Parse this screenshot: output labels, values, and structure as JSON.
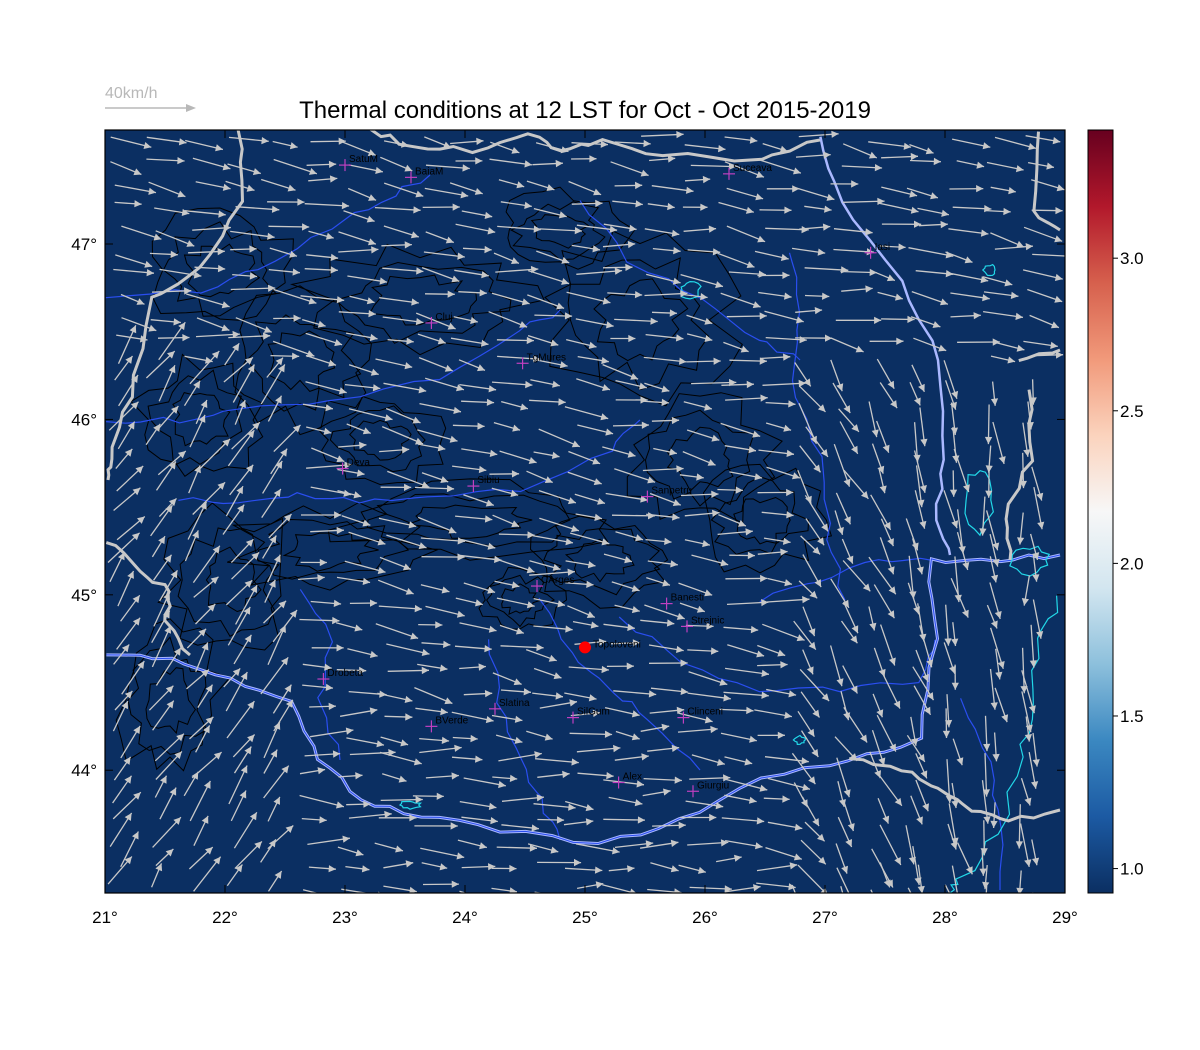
{
  "title": "Thermal conditions at 12 LST for Oct - Oct  2015-2019",
  "wind_legend": {
    "label": "40km/h",
    "color": "#b8b8b8"
  },
  "map": {
    "background_color": "#0b2f62",
    "lon_range": [
      21,
      29
    ],
    "lat_range": [
      43.3,
      47.65
    ],
    "x_ticks": [
      "21°",
      "22°",
      "23°",
      "24°",
      "25°",
      "26°",
      "27°",
      "28°",
      "29°"
    ],
    "y_ticks": [
      "44°",
      "45°",
      "46°",
      "47°"
    ],
    "colors": {
      "country_border": "#c8c8c8",
      "rivers": "#2a4ef0",
      "danube": "#aab8ff",
      "lakes": "#22d8e8",
      "contours": "#000000",
      "stations": "#c040c0",
      "highlight_station": "#ff0000"
    }
  },
  "stations": [
    {
      "name": "SatuM",
      "lon": 23.0,
      "lat": 47.45
    },
    {
      "name": "BaiaM",
      "lon": 23.55,
      "lat": 47.38
    },
    {
      "name": "Suceava",
      "lon": 26.2,
      "lat": 47.4
    },
    {
      "name": "Iasi",
      "lon": 27.38,
      "lat": 46.95
    },
    {
      "name": "Cluj",
      "lon": 23.72,
      "lat": 46.55
    },
    {
      "name": "TgMures",
      "lon": 24.48,
      "lat": 46.32
    },
    {
      "name": "Deva",
      "lon": 22.98,
      "lat": 45.72
    },
    {
      "name": "Sibiu",
      "lon": 24.07,
      "lat": 45.62
    },
    {
      "name": "Sanpetru",
      "lon": 25.52,
      "lat": 45.56
    },
    {
      "name": "CArges",
      "lon": 24.6,
      "lat": 45.05
    },
    {
      "name": "Banesti",
      "lon": 25.68,
      "lat": 44.95
    },
    {
      "name": "Strejnic",
      "lon": 25.85,
      "lat": 44.82
    },
    {
      "name": "Drobeta",
      "lon": 22.82,
      "lat": 44.52
    },
    {
      "name": "Slatina",
      "lon": 24.25,
      "lat": 44.35
    },
    {
      "name": "SilGum",
      "lon": 24.9,
      "lat": 44.3
    },
    {
      "name": "Clinceni",
      "lon": 25.82,
      "lat": 44.3
    },
    {
      "name": "BVerde",
      "lon": 23.72,
      "lat": 44.25
    },
    {
      "name": "Alex",
      "lon": 25.28,
      "lat": 43.93
    },
    {
      "name": "Giurgiu",
      "lon": 25.9,
      "lat": 43.88
    }
  ],
  "highlight_station": {
    "name": "Topoloveni",
    "lon": 25.0,
    "lat": 44.7
  },
  "colorbar": {
    "ticks": [
      "1.0",
      "1.5",
      "2.0",
      "2.5",
      "3.0"
    ],
    "tick_values": [
      1.0,
      1.5,
      2.0,
      2.5,
      3.0
    ],
    "range": [
      0.92,
      3.42
    ],
    "colormap": [
      "#0b2f62",
      "#1c5aa3",
      "#3b88c1",
      "#8dc0dc",
      "#d3e6f0",
      "#f7f7f7",
      "#fbd3bd",
      "#f1997a",
      "#d6604d",
      "#b2182b",
      "#67001f"
    ]
  }
}
